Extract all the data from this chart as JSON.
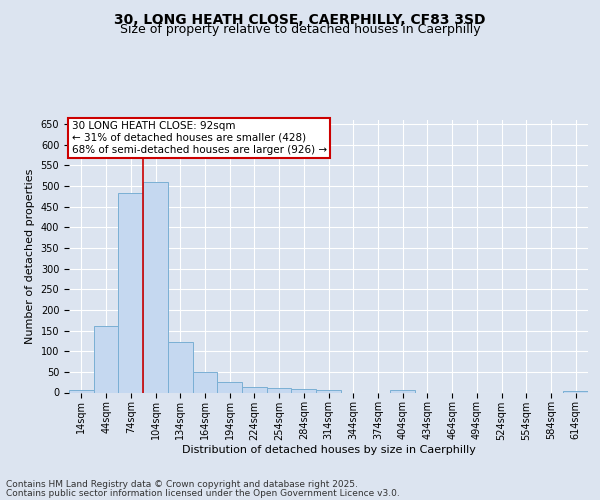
{
  "title_line1": "30, LONG HEATH CLOSE, CAERPHILLY, CF83 3SD",
  "title_line2": "Size of property relative to detached houses in Caerphilly",
  "xlabel": "Distribution of detached houses by size in Caerphilly",
  "ylabel": "Number of detached properties",
  "categories": [
    "14sqm",
    "44sqm",
    "74sqm",
    "104sqm",
    "134sqm",
    "164sqm",
    "194sqm",
    "224sqm",
    "254sqm",
    "284sqm",
    "314sqm",
    "344sqm",
    "374sqm",
    "404sqm",
    "434sqm",
    "464sqm",
    "494sqm",
    "524sqm",
    "554sqm",
    "584sqm",
    "614sqm"
  ],
  "values": [
    5,
    160,
    483,
    510,
    122,
    50,
    25,
    13,
    10,
    8,
    7,
    0,
    0,
    5,
    0,
    0,
    0,
    0,
    0,
    0,
    3
  ],
  "bar_color": "#c5d8f0",
  "bar_edge_color": "#7aafd4",
  "bar_width": 1.0,
  "vline_color": "#cc0000",
  "ylim": [
    0,
    660
  ],
  "yticks": [
    0,
    50,
    100,
    150,
    200,
    250,
    300,
    350,
    400,
    450,
    500,
    550,
    600,
    650
  ],
  "annotation_text": "30 LONG HEATH CLOSE: 92sqm\n← 31% of detached houses are smaller (428)\n68% of semi-detached houses are larger (926) →",
  "annotation_box_color": "#ffffff",
  "annotation_box_edge": "#cc0000",
  "background_color": "#dce4f0",
  "plot_bg_color": "#dce4f0",
  "footer_line1": "Contains HM Land Registry data © Crown copyright and database right 2025.",
  "footer_line2": "Contains public sector information licensed under the Open Government Licence v3.0.",
  "title_fontsize": 10,
  "subtitle_fontsize": 9,
  "axis_label_fontsize": 8,
  "tick_fontsize": 7,
  "annotation_fontsize": 7.5,
  "footer_fontsize": 6.5
}
